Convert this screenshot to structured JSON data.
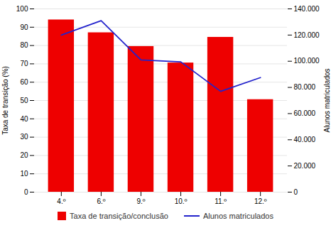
{
  "chart_data": {
    "type": "bar",
    "categories": [
      "4.º",
      "6.º",
      "9.º",
      "10.º",
      "11.º",
      "12.º"
    ],
    "series": [
      {
        "name": "Taxa de transição/conclusão",
        "type": "bar",
        "color": "#ee0000",
        "values": [
          94,
          87,
          79.5,
          70.5,
          84.5,
          50.5
        ]
      },
      {
        "name": "Alunos matriculados",
        "type": "line",
        "color": "#2222cc",
        "axis": "y2",
        "values": [
          120000,
          131000,
          101000,
          99500,
          77000,
          87500
        ]
      }
    ],
    "ylabel": "Taxa de transição (%)",
    "y2label": "Alunos matriculados",
    "ylim": [
      0,
      100
    ],
    "yticks": [
      0,
      10,
      20,
      30,
      40,
      50,
      60,
      70,
      80,
      90,
      100
    ],
    "y2lim": [
      0,
      140000
    ],
    "y2ticks": [
      0,
      {
        "value": 20000,
        "label": "20.000"
      },
      {
        "value": 40000,
        "label": "40.000"
      },
      {
        "value": 60000,
        "label": "60.000"
      },
      {
        "value": 80000,
        "label": "80.000"
      },
      {
        "value": 100000,
        "label": "100.000"
      },
      {
        "value": 120000,
        "label": "120.000"
      },
      {
        "value": 140000,
        "label": "140.000"
      }
    ],
    "grid": true,
    "legend": "bottom"
  }
}
